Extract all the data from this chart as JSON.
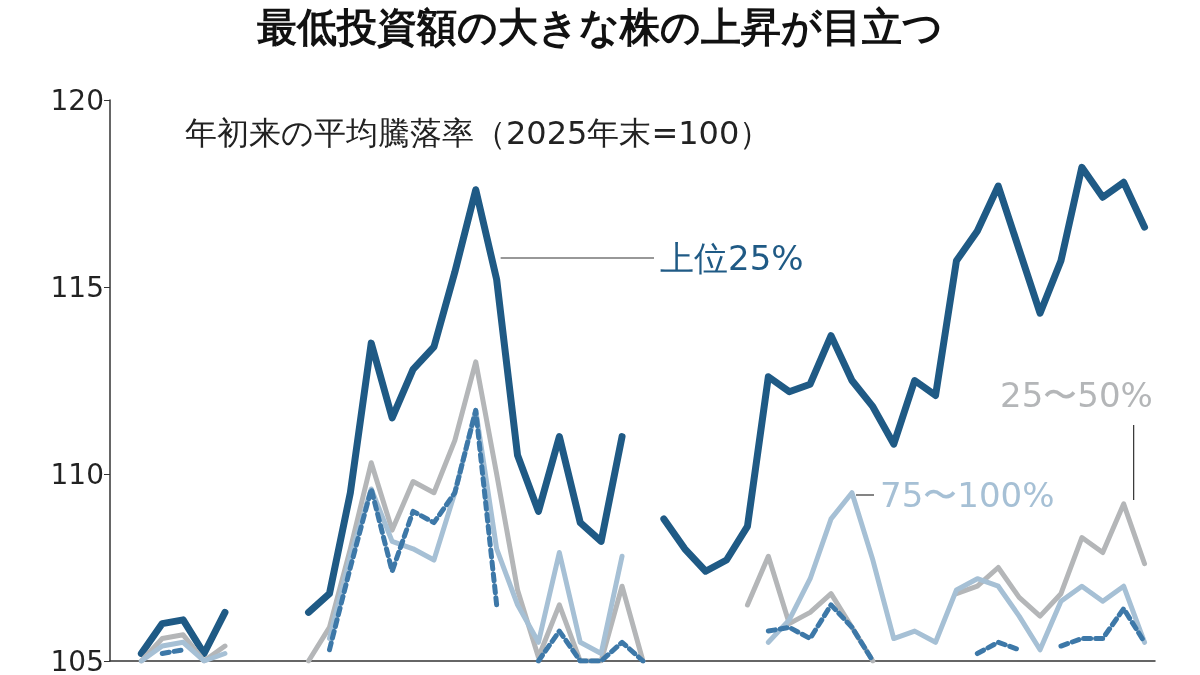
{
  "chart_data": {
    "type": "line",
    "title": "最低投資額の大きな株の上昇が目立つ",
    "subtitle": "年初来の平均騰落率（2025年末=100）",
    "categories": [
      null,
      null,
      null,
      null,
      null,
      null,
      null,
      null,
      null,
      null,
      null,
      null,
      null,
      null,
      null,
      null,
      null,
      null,
      null,
      null,
      null,
      null,
      null,
      null,
      null,
      null,
      null,
      null,
      null,
      null,
      null,
      null,
      null,
      null,
      null,
      null,
      null,
      null,
      null,
      null,
      null,
      null,
      null,
      null,
      null,
      null,
      null,
      null,
      null,
      null
    ],
    "series": [
      {
        "name": "上位25%",
        "color": "#1f5a85",
        "line_style": "solid",
        "values": [
          null,
          105.2,
          106.0,
          106.1,
          105.2,
          106.3,
          null,
          null,
          null,
          106.3,
          106.8,
          109.5,
          113.5,
          111.5,
          112.8,
          113.4,
          115.4,
          117.6,
          115.2,
          110.5,
          109.0,
          111.0,
          108.7,
          108.2,
          111.0,
          null,
          108.8,
          108.0,
          107.4,
          107.7,
          108.6,
          112.6,
          112.2,
          112.4,
          113.7,
          112.5,
          111.8,
          110.8,
          112.5,
          112.1,
          115.7,
          116.5,
          117.7,
          116.0,
          114.3,
          115.7,
          118.2,
          117.4,
          117.8,
          116.6
        ]
      },
      {
        "name": "25〜50%",
        "color": "#b4b6b8",
        "line_style": "solid",
        "values": [
          null,
          105.0,
          105.6,
          105.7,
          105.0,
          105.4,
          null,
          null,
          null,
          105.0,
          105.9,
          108.0,
          110.3,
          108.5,
          109.8,
          109.5,
          110.9,
          113.0,
          110.0,
          106.9,
          105.1,
          106.5,
          105.0,
          105.0,
          107.0,
          105.0,
          null,
          null,
          null,
          null,
          106.5,
          107.8,
          106.0,
          106.3,
          106.8,
          105.9,
          105.0,
          null,
          null,
          null,
          106.8,
          107.0,
          107.5,
          106.7,
          106.2,
          106.8,
          108.3,
          107.9,
          109.2,
          107.6
        ]
      },
      {
        "name": "75〜100%",
        "color": "#a6c0d5",
        "line_style": "solid",
        "values": [
          null,
          105.0,
          105.4,
          105.5,
          105.0,
          105.2,
          null,
          null,
          null,
          null,
          105.6,
          107.8,
          109.6,
          108.2,
          108.0,
          107.7,
          109.5,
          111.7,
          108.0,
          106.5,
          105.5,
          107.9,
          105.5,
          105.2,
          107.8,
          null,
          null,
          null,
          null,
          null,
          null,
          105.5,
          106.1,
          107.2,
          108.8,
          109.5,
          107.7,
          105.6,
          105.8,
          105.5,
          106.9,
          107.2,
          107.0,
          106.2,
          105.3,
          106.6,
          107.0,
          106.6,
          107.0,
          105.5
        ]
      },
      {
        "color": "#3d78a8",
        "line_style": "dashed",
        "values": [
          null,
          null,
          105.2,
          105.3,
          null,
          null,
          null,
          null,
          null,
          null,
          105.3,
          107.5,
          109.6,
          107.4,
          109.0,
          108.7,
          109.5,
          111.7,
          106.5,
          null,
          105.0,
          105.8,
          105.0,
          105.0,
          105.5,
          105.0,
          null,
          null,
          null,
          null,
          null,
          105.8,
          105.9,
          105.6,
          106.5,
          105.9,
          105.0,
          null,
          null,
          null,
          null,
          105.2,
          105.5,
          105.3,
          null,
          105.4,
          105.6,
          105.6,
          106.4,
          105.5
        ]
      }
    ],
    "ylim": [
      105,
      120
    ],
    "yticks": [
      105,
      110,
      115,
      120
    ],
    "grid": false,
    "legend": false,
    "tick_labels": "y",
    "marker": "none"
  }
}
